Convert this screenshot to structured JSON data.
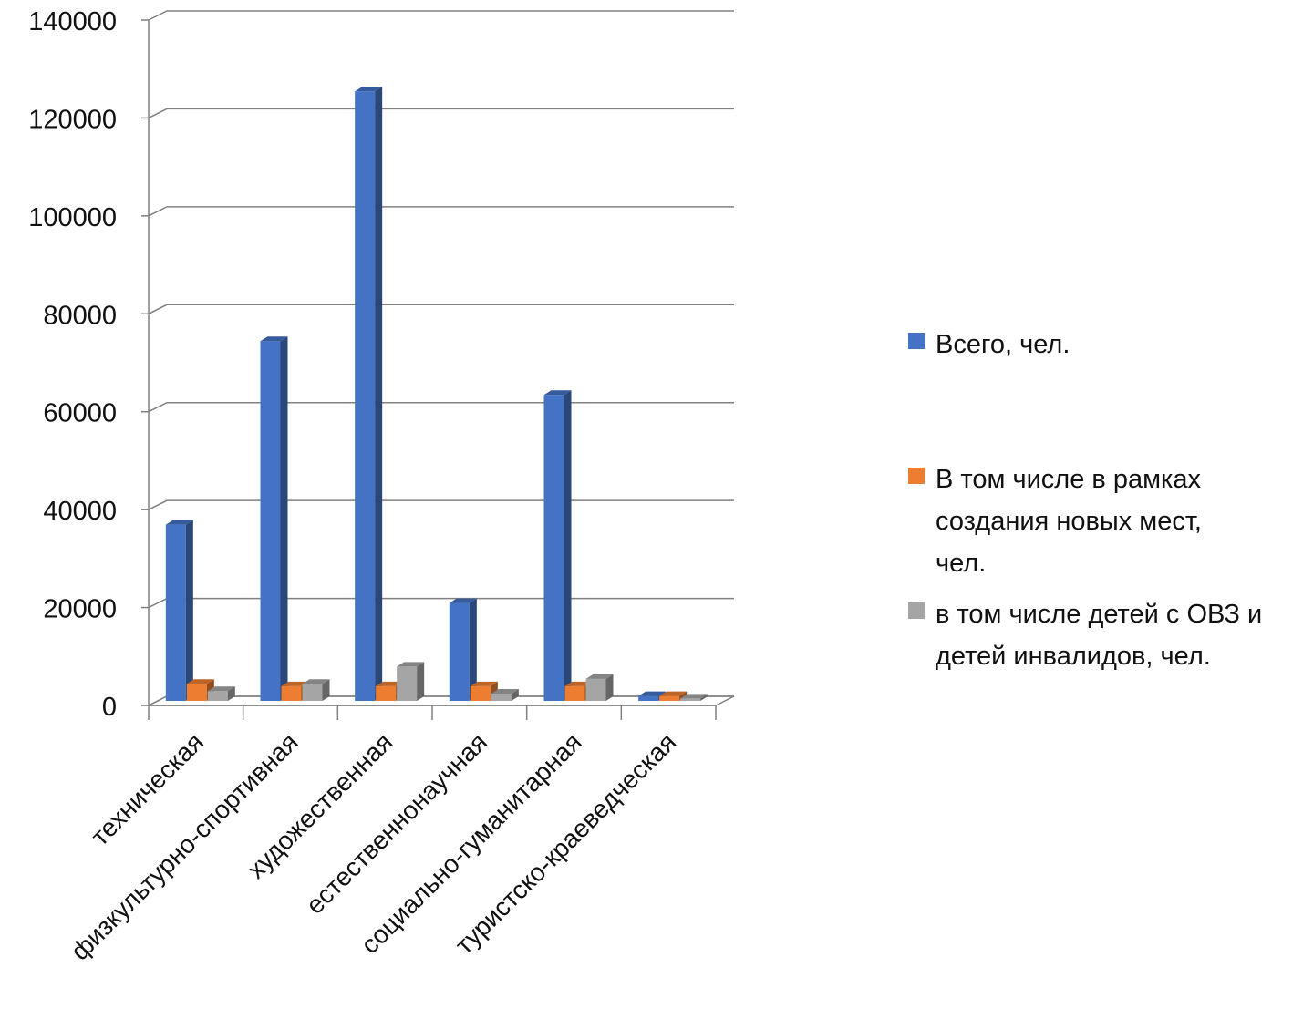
{
  "chart_data": {
    "type": "bar",
    "categories": [
      "техническая",
      "физкультурно-спортивная",
      "художественная",
      "естественнонаучная",
      "социально-гуманитарная",
      "туристско-краеведческая"
    ],
    "series": [
      {
        "name": "Всего, чел.",
        "color": "#4472C4",
        "values": [
          36000,
          73500,
          124500,
          20000,
          62500,
          1000
        ]
      },
      {
        "name": "В том числе в рамках создания новых мест, чел.",
        "color": "#ED7D31",
        "values": [
          3500,
          3000,
          3000,
          3000,
          3000,
          1000
        ]
      },
      {
        "name": "в том числе детей  с ОВЗ и детей инвалидов, чел.",
        "color": "#A5A5A5",
        "values": [
          2000,
          3500,
          7000,
          1500,
          4500,
          500
        ]
      }
    ],
    "yticks": [
      "0",
      "20000",
      "40000",
      "60000",
      "80000",
      "100000",
      "120000",
      "140000"
    ],
    "ylim": [
      0,
      140000
    ],
    "grid": true,
    "legend_position": "right"
  }
}
